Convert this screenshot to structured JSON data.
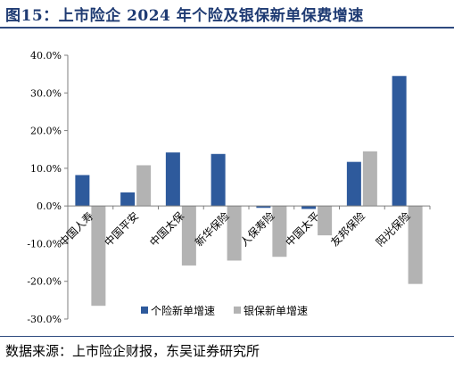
{
  "title": "图15：上市险企 2024 年个险及银保新单保费增速",
  "source": "数据来源：上市险企财报，东吴证券研究所",
  "chart_data": {
    "type": "bar",
    "categories": [
      "中国人寿",
      "中国平安",
      "中国太保",
      "新华保险",
      "人保寿险",
      "中国太平",
      "友邦保险",
      "阳光保险"
    ],
    "series": [
      {
        "name": "个险新单增速",
        "color": "#2e5a9c",
        "values": [
          8.2,
          3.6,
          14.2,
          13.8,
          -0.5,
          -0.8,
          11.7,
          34.5
        ]
      },
      {
        "name": "银保新单增速",
        "color": "#b3b3b3",
        "values": [
          -26.5,
          10.8,
          -15.8,
          -14.5,
          -13.5,
          -7.8,
          14.5,
          -20.7
        ]
      }
    ],
    "yticks": [
      "40.0%",
      "30.0%",
      "20.0%",
      "10.0%",
      "0.0%",
      "-10.0%",
      "-20.0%",
      "-30.0%"
    ],
    "ylim": [
      -30,
      40
    ],
    "legend_position": "bottom"
  }
}
